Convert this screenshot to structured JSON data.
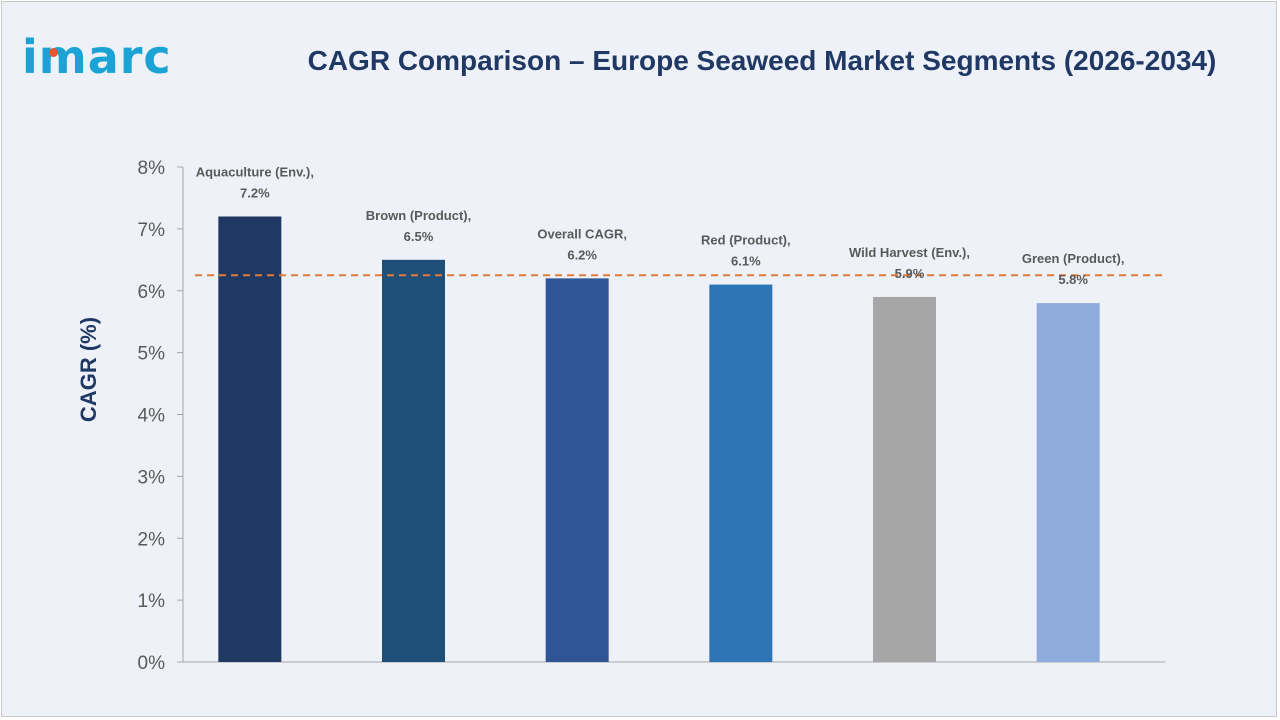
{
  "brand": {
    "logo_text": "imarc",
    "logo_dot_color": "#e6572d",
    "logo_color": "#1ba3d6"
  },
  "chart_data": {
    "type": "bar",
    "title": "CAGR Comparison – Europe Seaweed Market Segments (2026-2034)",
    "ylabel": "CAGR (%)",
    "xlabel": "",
    "ylim": [
      0,
      8
    ],
    "yticks": [
      "0%",
      "1%",
      "2%",
      "3%",
      "4%",
      "5%",
      "6%",
      "7%",
      "8%"
    ],
    "categories": [
      "Aquaculture (Env.),",
      "Brown (Product),",
      "Overall CAGR,",
      "Red (Product),",
      "Wild Harvest (Env.),",
      "Green (Product),"
    ],
    "values": [
      7.2,
      6.5,
      6.2,
      6.1,
      5.9,
      5.8
    ],
    "value_labels": [
      "7.2%",
      "6.5%",
      "6.2%",
      "6.1%",
      "5.9%",
      "5.8%"
    ],
    "colors": [
      "#1f3864",
      "#1f4e79",
      "#2f5597",
      "#2e75b6",
      "#a6a6a6",
      "#8faadc"
    ],
    "reference_line": {
      "value": 6.25,
      "color": "#e07b39",
      "style": "dashed"
    },
    "grid": false,
    "legend": "none"
  }
}
